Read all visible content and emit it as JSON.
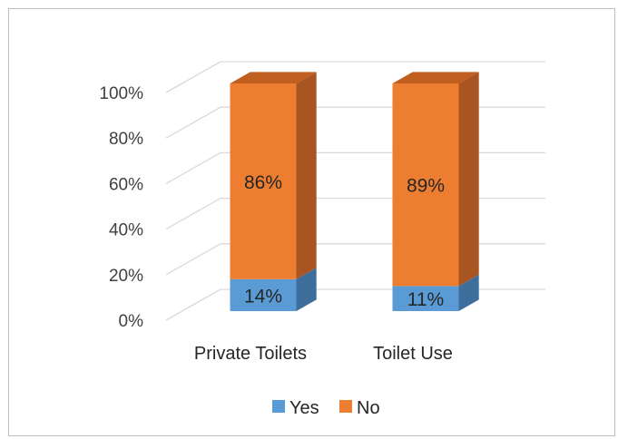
{
  "chart_data": {
    "type": "bar",
    "stacked": true,
    "percent_stacked": true,
    "three_d": true,
    "categories": [
      "Private Toilets",
      "Toilet Use"
    ],
    "series": [
      {
        "name": "Yes",
        "values": [
          14,
          11
        ],
        "labels": [
          "14%",
          "11%"
        ],
        "color": "#5b9bd5",
        "side_color": "#3e6f9c"
      },
      {
        "name": "No",
        "values": [
          86,
          89
        ],
        "labels": [
          "86%",
          "89%"
        ],
        "color": "#ed7d31",
        "side_color": "#a85522",
        "top_color": "#c05f1f"
      }
    ],
    "y_ticks": [
      "0%",
      "20%",
      "40%",
      "60%",
      "80%",
      "100%"
    ],
    "ylim": [
      0,
      100
    ],
    "grid": true,
    "legend_position": "bottom",
    "title": "",
    "xlabel": "",
    "ylabel": ""
  }
}
